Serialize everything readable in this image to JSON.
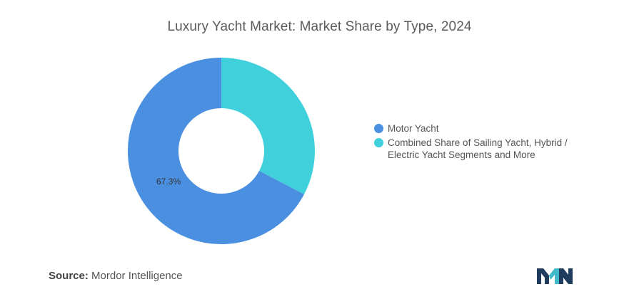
{
  "chart_data": {
    "type": "pie",
    "title": "Luxury Yacht Market: Market Share by Type, 2024",
    "donut": true,
    "slices": [
      {
        "name": "Motor Yacht",
        "value": 67.3,
        "label": "67.3%",
        "color": "#4a8fe0"
      },
      {
        "name": "Combined Share of Sailing Yacht, Hybrid / Electric Yacht Segments and More",
        "value": 32.7,
        "label": "",
        "color": "#3fd0dc"
      }
    ],
    "legend_placement": "right"
  },
  "source": {
    "label": "Source:",
    "text": "Mordor Intelligence"
  },
  "logo": {
    "icon": "mordor-intelligence-logo-icon",
    "colors": [
      "#1f3c5f",
      "#3fb8c9"
    ]
  }
}
